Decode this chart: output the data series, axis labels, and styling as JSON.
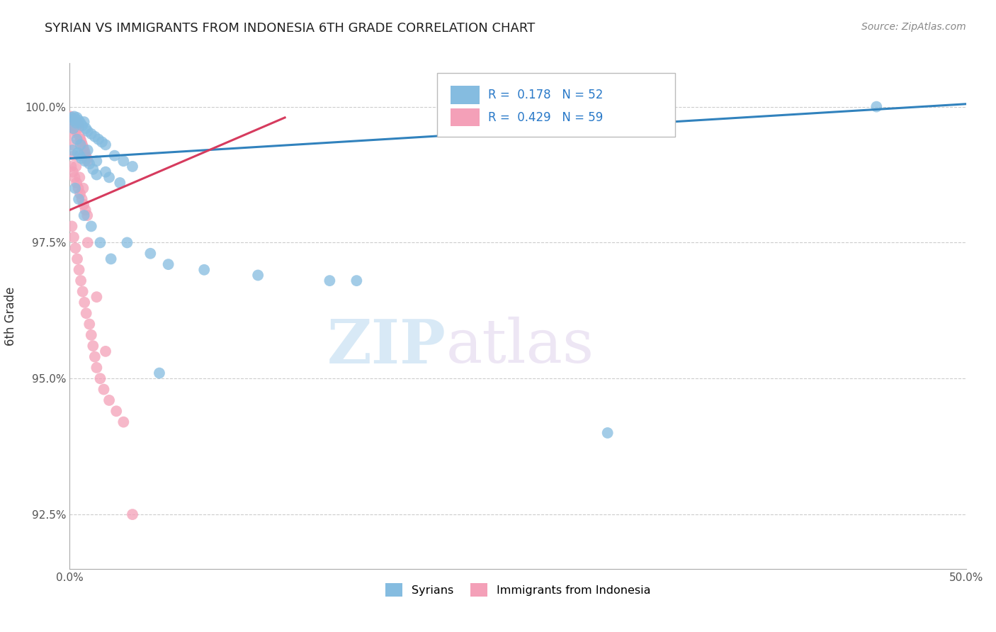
{
  "title": "SYRIAN VS IMMIGRANTS FROM INDONESIA 6TH GRADE CORRELATION CHART",
  "source": "Source: ZipAtlas.com",
  "ylabel": "6th Grade",
  "xlim": [
    0.0,
    50.0
  ],
  "ylim": [
    91.5,
    100.8
  ],
  "xticks": [
    0.0,
    12.5,
    25.0,
    37.5,
    50.0
  ],
  "xtick_labels": [
    "0.0%",
    "",
    "",
    "",
    "50.0%"
  ],
  "yticks": [
    92.5,
    95.0,
    97.5,
    100.0
  ],
  "ytick_labels": [
    "92.5%",
    "95.0%",
    "97.5%",
    "100.0%"
  ],
  "blue_label": "Syrians",
  "pink_label": "Immigrants from Indonesia",
  "blue_R": 0.178,
  "blue_N": 52,
  "pink_R": 0.429,
  "pink_N": 59,
  "blue_color": "#85bce0",
  "pink_color": "#f4a0b8",
  "blue_line_color": "#3182bd",
  "pink_line_color": "#d63b5e",
  "background_color": "#ffffff",
  "watermark_zip": "ZIP",
  "watermark_atlas": "atlas",
  "blue_line_x0": 0.0,
  "blue_line_y0": 99.05,
  "blue_line_x1": 50.0,
  "blue_line_y1": 100.05,
  "pink_line_x0": 0.0,
  "pink_line_y0": 98.1,
  "pink_line_x1": 12.0,
  "pink_line_y1": 99.8,
  "blue_scatter_x": [
    0.1,
    0.2,
    0.25,
    0.3,
    0.35,
    0.4,
    0.5,
    0.6,
    0.7,
    0.8,
    0.9,
    1.0,
    1.2,
    1.4,
    1.6,
    1.8,
    2.0,
    2.5,
    3.0,
    3.5,
    0.15,
    0.45,
    0.55,
    0.65,
    0.85,
    1.1,
    1.3,
    1.5,
    2.2,
    2.8,
    0.3,
    0.5,
    0.8,
    1.2,
    1.7,
    2.3,
    3.2,
    4.5,
    5.5,
    7.5,
    10.5,
    14.5,
    16.0,
    30.0,
    45.0,
    0.2,
    0.4,
    0.6,
    1.0,
    1.5,
    2.0,
    5.0
  ],
  "blue_scatter_y": [
    99.8,
    99.75,
    99.82,
    99.78,
    99.7,
    99.8,
    99.75,
    99.7,
    99.65,
    99.72,
    99.6,
    99.55,
    99.5,
    99.45,
    99.4,
    99.35,
    99.3,
    99.1,
    99.0,
    98.9,
    99.2,
    99.15,
    99.1,
    99.05,
    99.0,
    98.95,
    98.85,
    98.75,
    98.7,
    98.6,
    98.5,
    98.3,
    98.0,
    97.8,
    97.5,
    97.2,
    97.5,
    97.3,
    97.1,
    97.0,
    96.9,
    96.8,
    96.8,
    94.0,
    100.0,
    99.6,
    99.4,
    99.3,
    99.2,
    99.0,
    98.8,
    95.1
  ],
  "pink_scatter_x": [
    0.05,
    0.1,
    0.15,
    0.2,
    0.25,
    0.3,
    0.35,
    0.4,
    0.45,
    0.5,
    0.55,
    0.6,
    0.65,
    0.7,
    0.75,
    0.8,
    0.85,
    0.9,
    0.95,
    1.0,
    0.08,
    0.18,
    0.28,
    0.38,
    0.48,
    0.58,
    0.68,
    0.78,
    0.88,
    0.98,
    0.12,
    0.22,
    0.32,
    0.42,
    0.52,
    0.62,
    0.72,
    0.82,
    0.92,
    1.1,
    1.2,
    1.3,
    1.4,
    1.5,
    1.7,
    1.9,
    2.2,
    2.6,
    3.0,
    0.05,
    0.15,
    0.25,
    0.35,
    0.55,
    0.75,
    1.0,
    1.5,
    2.0,
    3.5
  ],
  "pink_scatter_y": [
    99.82,
    99.78,
    99.75,
    99.7,
    99.65,
    99.6,
    99.55,
    99.72,
    99.68,
    99.62,
    99.45,
    99.4,
    99.35,
    99.3,
    99.25,
    99.2,
    99.15,
    99.1,
    99.05,
    99.0,
    98.9,
    98.8,
    98.7,
    98.6,
    98.5,
    98.4,
    98.3,
    98.2,
    98.1,
    98.0,
    97.8,
    97.6,
    97.4,
    97.2,
    97.0,
    96.8,
    96.6,
    96.4,
    96.2,
    96.0,
    95.8,
    95.6,
    95.4,
    95.2,
    95.0,
    94.8,
    94.6,
    94.4,
    94.2,
    99.5,
    99.3,
    99.1,
    98.9,
    98.7,
    98.5,
    97.5,
    96.5,
    95.5,
    92.5
  ]
}
